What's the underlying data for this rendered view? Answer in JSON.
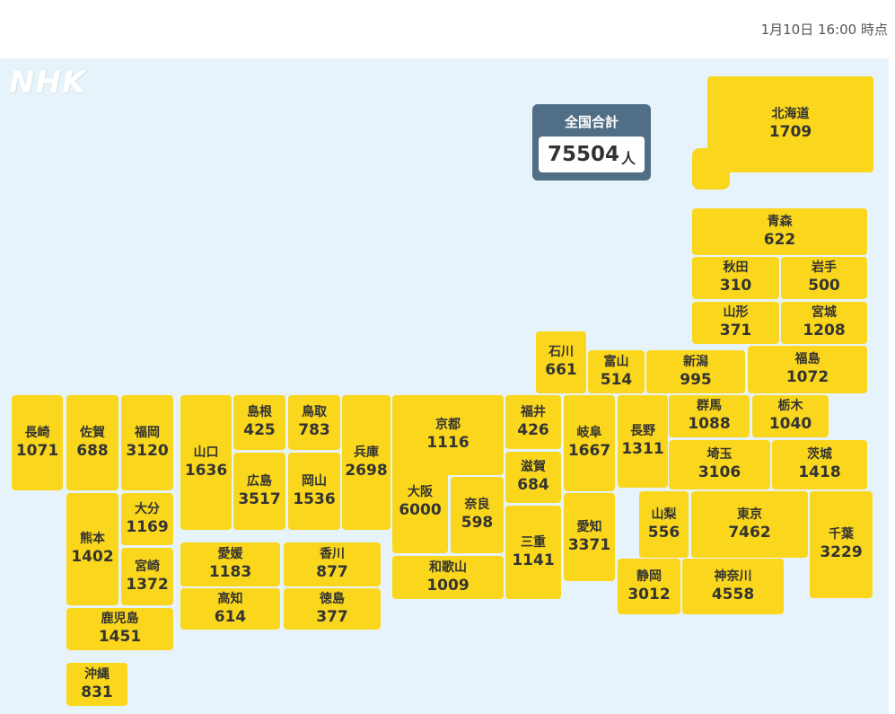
{
  "header": {
    "timestamp": "1月10日 16:00 時点"
  },
  "logo": {
    "text": "NHK"
  },
  "total": {
    "title": "全国合計",
    "value": "75504",
    "unit": "人"
  },
  "prefectures": [
    {
      "id": "hokkaido",
      "name": "北海道",
      "count": "1709"
    },
    {
      "id": "aomori",
      "name": "青森",
      "count": "622"
    },
    {
      "id": "akita",
      "name": "秋田",
      "count": "310"
    },
    {
      "id": "iwate",
      "name": "岩手",
      "count": "500"
    },
    {
      "id": "yamagata",
      "name": "山形",
      "count": "371"
    },
    {
      "id": "miyagi",
      "name": "宮城",
      "count": "1208"
    },
    {
      "id": "ishikawa",
      "name": "石川",
      "count": "661"
    },
    {
      "id": "toyama",
      "name": "富山",
      "count": "514"
    },
    {
      "id": "niigata",
      "name": "新潟",
      "count": "995"
    },
    {
      "id": "fukushima",
      "name": "福島",
      "count": "1072"
    },
    {
      "id": "nagasaki",
      "name": "長崎",
      "count": "1071"
    },
    {
      "id": "saga",
      "name": "佐賀",
      "count": "688"
    },
    {
      "id": "fukuoka",
      "name": "福岡",
      "count": "3120"
    },
    {
      "id": "yamaguchi",
      "name": "山口",
      "count": "1636"
    },
    {
      "id": "shimane",
      "name": "島根",
      "count": "425"
    },
    {
      "id": "tottori",
      "name": "鳥取",
      "count": "783"
    },
    {
      "id": "hyogo",
      "name": "兵庫",
      "count": "2698"
    },
    {
      "id": "kyoto",
      "name": "京都",
      "count": "1116"
    },
    {
      "id": "fukui",
      "name": "福井",
      "count": "426"
    },
    {
      "id": "gifu",
      "name": "岐阜",
      "count": "1667"
    },
    {
      "id": "nagano",
      "name": "長野",
      "count": "1311"
    },
    {
      "id": "gunma",
      "name": "群馬",
      "count": "1088"
    },
    {
      "id": "tochigi",
      "name": "栃木",
      "count": "1040"
    },
    {
      "id": "saitama",
      "name": "埼玉",
      "count": "3106"
    },
    {
      "id": "ibaraki",
      "name": "茨城",
      "count": "1418"
    },
    {
      "id": "hiroshima",
      "name": "広島",
      "count": "3517"
    },
    {
      "id": "okayama",
      "name": "岡山",
      "count": "1536"
    },
    {
      "id": "osaka",
      "name": "大阪",
      "count": "6000"
    },
    {
      "id": "nara",
      "name": "奈良",
      "count": "598"
    },
    {
      "id": "shiga",
      "name": "滋賀",
      "count": "684"
    },
    {
      "id": "mie",
      "name": "三重",
      "count": "1141"
    },
    {
      "id": "aichi",
      "name": "愛知",
      "count": "3371"
    },
    {
      "id": "yamanashi",
      "name": "山梨",
      "count": "556"
    },
    {
      "id": "tokyo",
      "name": "東京",
      "count": "7462"
    },
    {
      "id": "chiba",
      "name": "千葉",
      "count": "3229"
    },
    {
      "id": "kumamoto",
      "name": "熊本",
      "count": "1402"
    },
    {
      "id": "oita",
      "name": "大分",
      "count": "1169"
    },
    {
      "id": "miyazaki",
      "name": "宮崎",
      "count": "1372"
    },
    {
      "id": "ehime",
      "name": "愛媛",
      "count": "1183"
    },
    {
      "id": "kagawa",
      "name": "香川",
      "count": "877"
    },
    {
      "id": "kochi",
      "name": "高知",
      "count": "614"
    },
    {
      "id": "tokushima",
      "name": "徳島",
      "count": "377"
    },
    {
      "id": "wakayama",
      "name": "和歌山",
      "count": "1009"
    },
    {
      "id": "shizuoka",
      "name": "静岡",
      "count": "3012"
    },
    {
      "id": "kanagawa",
      "name": "神奈川",
      "count": "4558"
    },
    {
      "id": "kagoshima",
      "name": "鹿児島",
      "count": "1451"
    },
    {
      "id": "okinawa",
      "name": "沖縄",
      "count": "831"
    }
  ],
  "colors": {
    "tile": "#fad71c",
    "map_bg": "#e7f3fa",
    "total_bg": "#506f87"
  }
}
